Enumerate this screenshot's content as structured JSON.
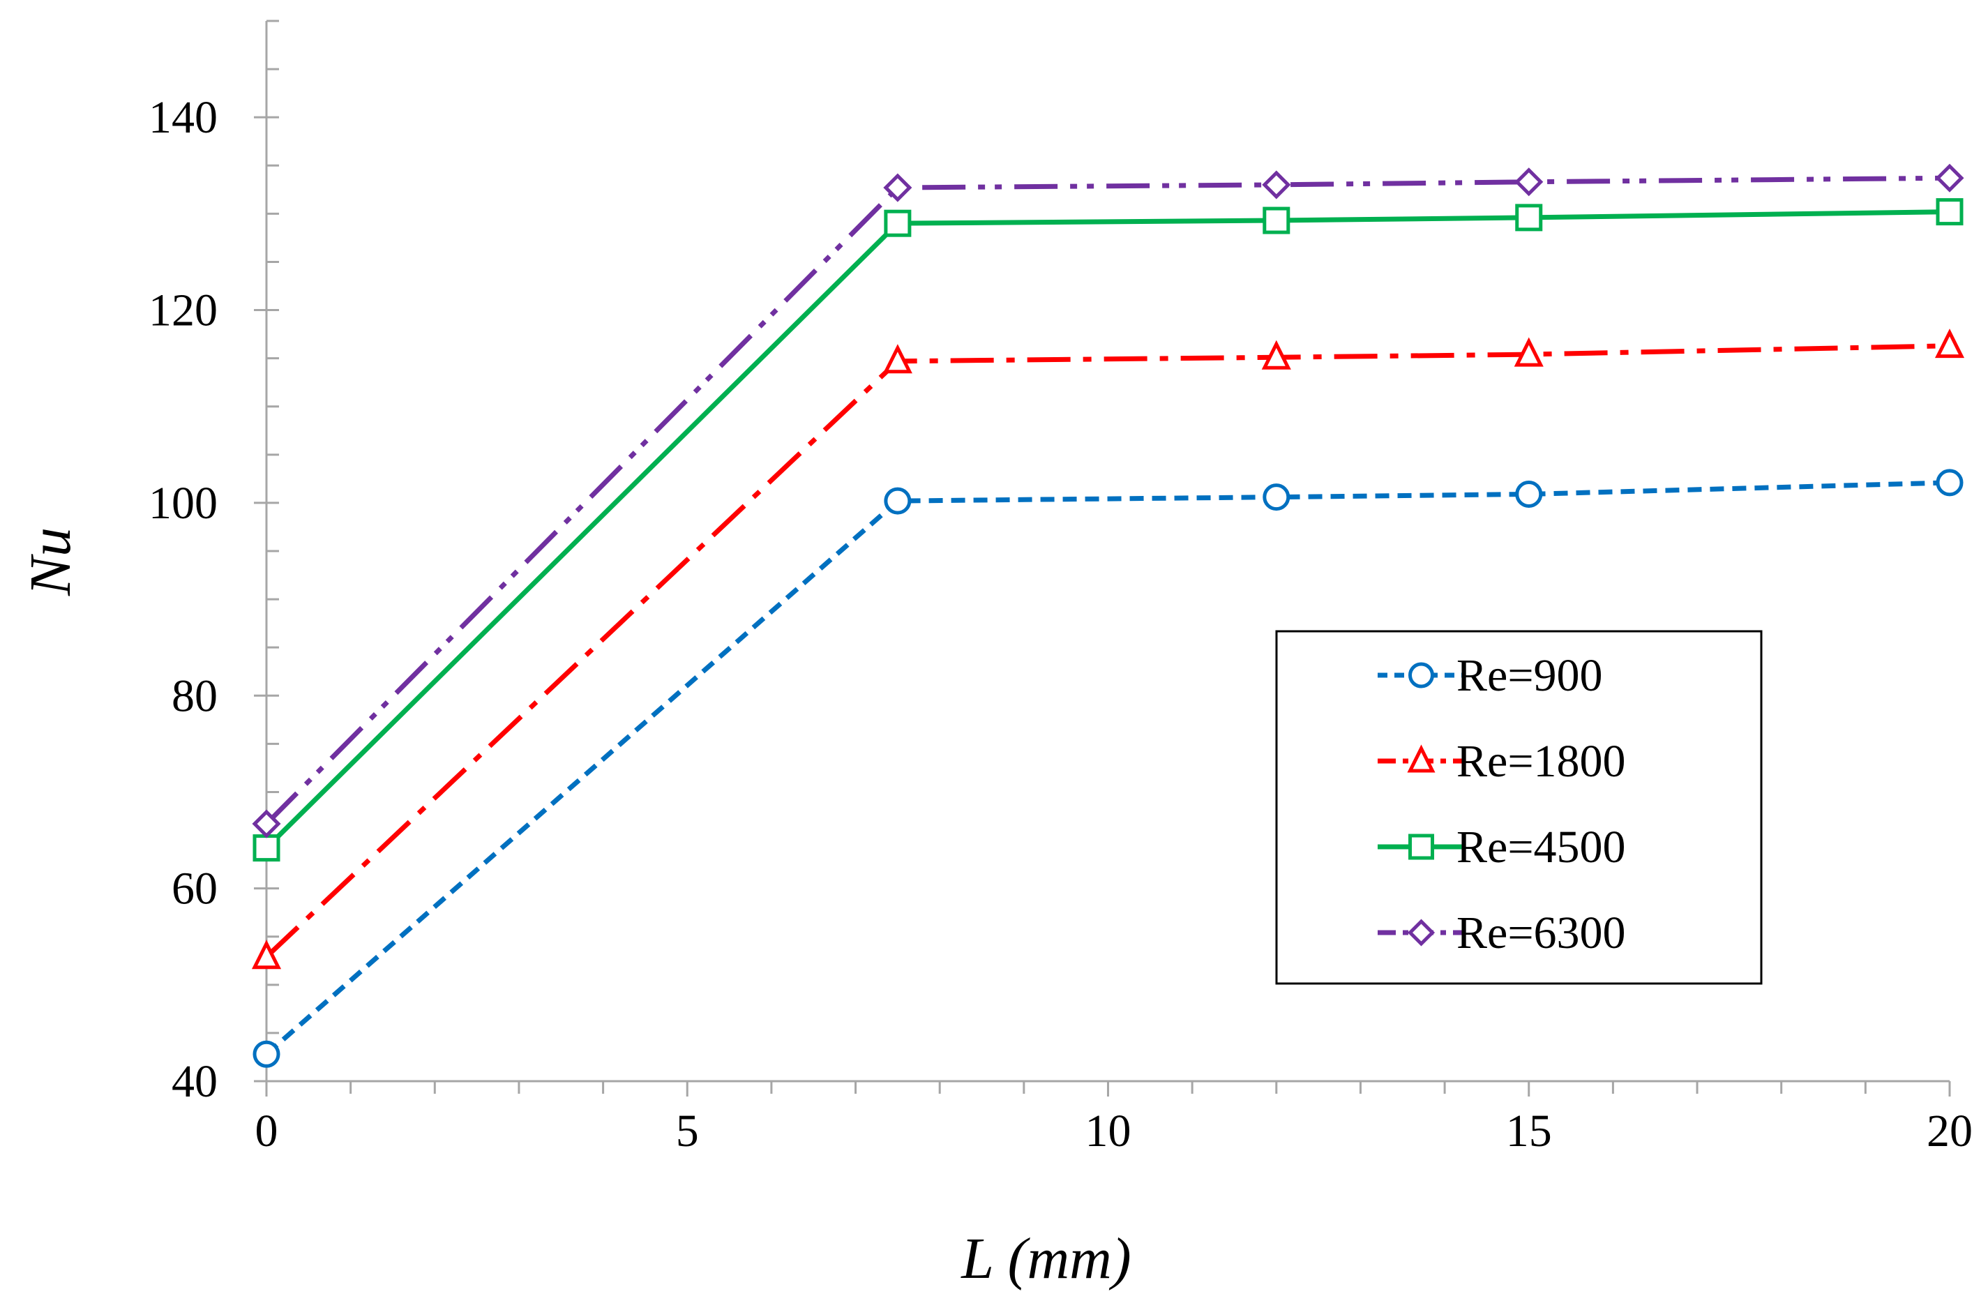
{
  "chart_data": {
    "type": "line",
    "title": "",
    "xlabel": "L (mm)",
    "ylabel": "Nu",
    "xlim": [
      0,
      20
    ],
    "ylim": [
      40,
      150
    ],
    "x_ticks": [
      0,
      5,
      10,
      15,
      20
    ],
    "y_ticks": [
      40,
      60,
      80,
      100,
      120,
      140
    ],
    "x_tick_labels": [
      "0",
      "5",
      "10",
      "15",
      "20"
    ],
    "y_tick_labels": [
      "40",
      "60",
      "80",
      "100",
      "120",
      "140"
    ],
    "x_minor_step": 1,
    "y_minor_step": 5,
    "x": [
      0,
      7.5,
      12,
      15,
      20
    ],
    "grid": false,
    "legend_position": "middle-right",
    "series": [
      {
        "name": "Re=900",
        "values": [
          42.8,
          100.2,
          100.6,
          100.9,
          102.1
        ],
        "color": "#0070C0",
        "marker": "circle",
        "line_style": "dashed"
      },
      {
        "name": "Re=1800",
        "values": [
          52.9,
          114.7,
          115.1,
          115.4,
          116.3
        ],
        "color": "#FF0000",
        "marker": "triangle",
        "line_style": "dash-dot"
      },
      {
        "name": "Re=4500",
        "values": [
          64.2,
          129.0,
          129.3,
          129.6,
          130.2
        ],
        "color": "#00B050",
        "marker": "square",
        "line_style": "solid"
      },
      {
        "name": "Re=6300",
        "values": [
          66.7,
          132.7,
          133.0,
          133.3,
          133.7
        ],
        "color": "#7030A0",
        "marker": "diamond",
        "line_style": "dash-dot-dot"
      }
    ]
  }
}
